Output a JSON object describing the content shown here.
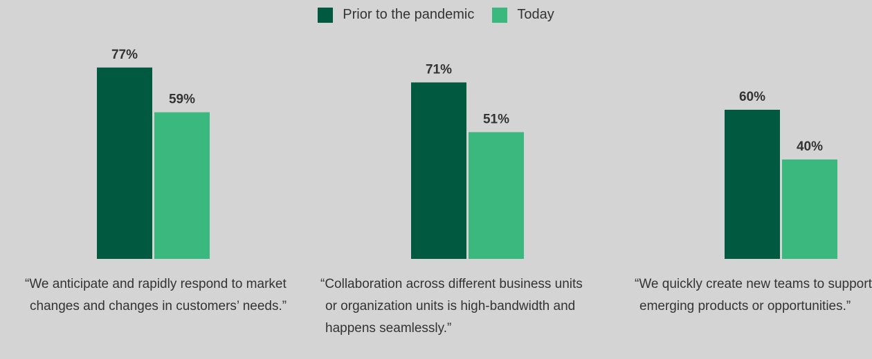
{
  "colors": {
    "prior": "#015a3f",
    "today": "#3bb87e",
    "background": "#d4d4d4",
    "text": "#333333"
  },
  "legend": {
    "prior_label": "Prior to the pandemic",
    "today_label": "Today"
  },
  "chart_data": {
    "type": "bar",
    "categories": [
      "“We anticipate and rapidly respond to market changes and changes in customers’ needs.”",
      "“Collaboration across different business units or organization units is high-bandwidth and happens seamlessly.”",
      "“We quickly create new teams to support emerging products or opportunities.”"
    ],
    "series": [
      {
        "name": "Prior to the pandemic",
        "values": [
          77,
          71,
          60
        ],
        "labels": [
          "77%",
          "71%",
          "60%"
        ]
      },
      {
        "name": "Today",
        "values": [
          59,
          51,
          40
        ],
        "labels": [
          "59%",
          "51%",
          "40%"
        ]
      }
    ],
    "ylim": [
      0,
      100
    ],
    "legend_position": "top-center",
    "grid": false
  }
}
